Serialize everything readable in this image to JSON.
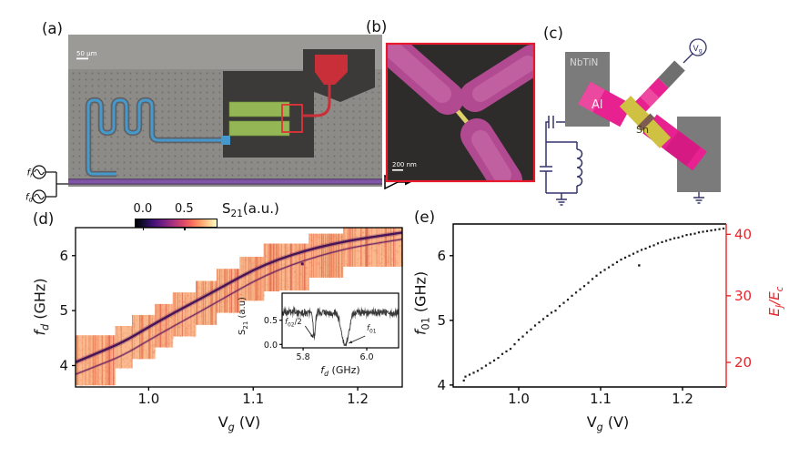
{
  "figure": {
    "panel_labels": {
      "a": "(a)",
      "b": "(b)",
      "c": "(c)",
      "d": "(d)",
      "e": "(e)"
    }
  },
  "panel_a": {
    "scale_bar": "50 μm",
    "source_top": {
      "prefix": "f",
      "sub": "r"
    },
    "source_bottom": {
      "prefix": "f",
      "sub": "d"
    }
  },
  "panel_b": {
    "scale_bar": "200 nm"
  },
  "panel_c": {
    "labels": {
      "nbtin": "NbTiN",
      "al": "Al",
      "sn": "Sn"
    },
    "gate": {
      "prefix": "V",
      "sub": "g"
    }
  },
  "chart_data": [
    {
      "id": "panel_d",
      "type": "heatmap",
      "xlabel_parts": {
        "prefix": "V",
        "sub": "g",
        "suffix": " (V)"
      },
      "ylabel_parts": {
        "prefix": "f",
        "sub": "d",
        "suffix": " (GHz)"
      },
      "xlim": [
        0.93,
        1.2426
      ],
      "ylim": [
        3.61,
        6.51
      ],
      "xticks": [
        1.0,
        1.1,
        1.2
      ],
      "xtick_labels": [
        "1.0",
        "1.1",
        "1.2"
      ],
      "yticks": [
        4,
        5,
        6
      ],
      "ytick_labels": [
        "4",
        "5",
        "6"
      ],
      "grid": false,
      "colorbar": {
        "label_parts": {
          "prefix": "S",
          "sub": "21",
          "suffix": "(a.u.)"
        },
        "tick_labels": [
          "0.0",
          "0.5"
        ],
        "tick_pos": [
          0.1,
          0.61
        ],
        "colors": [
          "#000004",
          "#140e36",
          "#3b0f70",
          "#641a80",
          "#8c2981",
          "#b73779",
          "#de4968",
          "#f7705c",
          "#fe9f6d",
          "#fecf92",
          "#fcfdbf"
        ]
      },
      "palette": {
        "base": "#f6a47b",
        "light": "#fdc89c",
        "dark": "#e4744e",
        "deep": "#d14f46"
      },
      "sweep_windows": [
        [
          0.93,
          0.968,
          3.64,
          4.55
        ],
        [
          0.968,
          0.984,
          3.95,
          4.72
        ],
        [
          0.984,
          1.006,
          4.12,
          4.92
        ],
        [
          1.006,
          1.023,
          4.33,
          5.12
        ],
        [
          1.023,
          1.045,
          4.53,
          5.33
        ],
        [
          1.045,
          1.065,
          4.74,
          5.54
        ],
        [
          1.065,
          1.087,
          4.96,
          5.76
        ],
        [
          1.087,
          1.11,
          5.18,
          5.98
        ],
        [
          1.11,
          1.153,
          5.35,
          6.22
        ],
        [
          1.153,
          1.186,
          5.6,
          6.4
        ],
        [
          1.186,
          1.2426,
          5.8,
          6.51
        ]
      ],
      "series": [
        {
          "name": "f01",
          "color": "#471457",
          "width": 2.4,
          "points": [
            [
              0.93,
              4.06
            ],
            [
              0.95,
              4.22
            ],
            [
              0.975,
              4.42
            ],
            [
              1.0,
              4.7
            ],
            [
              1.025,
              4.97
            ],
            [
              1.05,
              5.22
            ],
            [
              1.075,
              5.48
            ],
            [
              1.1,
              5.74
            ],
            [
              1.125,
              5.94
            ],
            [
              1.15,
              6.09
            ],
            [
              1.175,
              6.21
            ],
            [
              1.2,
              6.3
            ],
            [
              1.2426,
              6.42
            ]
          ]
        },
        {
          "name": "f02/2",
          "color": "#6e2a63",
          "width": 1.3,
          "points": [
            [
              0.93,
              3.84
            ],
            [
              0.95,
              3.99
            ],
            [
              0.975,
              4.18
            ],
            [
              1.0,
              4.46
            ],
            [
              1.025,
              4.73
            ],
            [
              1.05,
              4.99
            ],
            [
              1.075,
              5.26
            ],
            [
              1.1,
              5.53
            ],
            [
              1.125,
              5.75
            ],
            [
              1.15,
              5.92
            ],
            [
              1.175,
              6.06
            ],
            [
              1.2,
              6.17
            ],
            [
              1.2426,
              6.3
            ]
          ]
        }
      ],
      "outlier": [
        1.147,
        5.85
      ]
    },
    {
      "id": "panel_e",
      "type": "scatter",
      "xlabel_parts": {
        "prefix": "V",
        "sub": "g",
        "suffix": " (V)"
      },
      "ylabel_parts": {
        "prefix": "f",
        "sub": "01",
        "suffix": " (GHz)"
      },
      "right_ylabel_parts": {
        "e1": "E",
        "s1": "J",
        "slash": "/",
        "e2": "E",
        "s2": "c"
      },
      "right_axis_color": "#e8252a",
      "marker_color": "#1c1c1c",
      "xlim": [
        0.92,
        1.2533
      ],
      "ylim": [
        3.97,
        6.49
      ],
      "xticks": [
        1.0,
        1.1,
        1.2
      ],
      "xtick_labels": [
        "1.0",
        "1.1",
        "1.2"
      ],
      "yticks": [
        4,
        5,
        6
      ],
      "ytick_labels": [
        "4",
        "5",
        "6"
      ],
      "right_ticks": [
        {
          "label": "20",
          "f01_equiv": 4.35
        },
        {
          "label": "30",
          "f01_equiv": 5.38
        },
        {
          "label": "40",
          "f01_equiv": 6.33
        }
      ],
      "grid": false,
      "points": [
        [
          0.933,
          4.07
        ],
        [
          0.935,
          4.13
        ],
        [
          0.94,
          4.16
        ],
        [
          0.945,
          4.19
        ],
        [
          0.95,
          4.22
        ],
        [
          0.955,
          4.26
        ],
        [
          0.96,
          4.3
        ],
        [
          0.965,
          4.34
        ],
        [
          0.97,
          4.38
        ],
        [
          0.975,
          4.42
        ],
        [
          0.98,
          4.48
        ],
        [
          0.985,
          4.52
        ],
        [
          0.99,
          4.56
        ],
        [
          0.995,
          4.63
        ],
        [
          1.0,
          4.7
        ],
        [
          1.005,
          4.75
        ],
        [
          1.01,
          4.81
        ],
        [
          1.015,
          4.86
        ],
        [
          1.02,
          4.92
        ],
        [
          1.025,
          4.97
        ],
        [
          1.03,
          5.02
        ],
        [
          1.035,
          5.07
        ],
        [
          1.04,
          5.12
        ],
        [
          1.045,
          5.15
        ],
        [
          1.05,
          5.22
        ],
        [
          1.055,
          5.27
        ],
        [
          1.06,
          5.32
        ],
        [
          1.065,
          5.38
        ],
        [
          1.07,
          5.43
        ],
        [
          1.075,
          5.48
        ],
        [
          1.08,
          5.53
        ],
        [
          1.085,
          5.58
        ],
        [
          1.09,
          5.64
        ],
        [
          1.095,
          5.69
        ],
        [
          1.1,
          5.74
        ],
        [
          1.105,
          5.78
        ],
        [
          1.11,
          5.82
        ],
        [
          1.115,
          5.86
        ],
        [
          1.12,
          5.9
        ],
        [
          1.125,
          5.94
        ],
        [
          1.13,
          5.97
        ],
        [
          1.135,
          6.0
        ],
        [
          1.14,
          6.03
        ],
        [
          1.145,
          6.06
        ],
        [
          1.15,
          6.09
        ],
        [
          1.155,
          6.11
        ],
        [
          1.16,
          6.14
        ],
        [
          1.165,
          6.16
        ],
        [
          1.17,
          6.19
        ],
        [
          1.175,
          6.21
        ],
        [
          1.18,
          6.23
        ],
        [
          1.185,
          6.25
        ],
        [
          1.19,
          6.27
        ],
        [
          1.195,
          6.28
        ],
        [
          1.2,
          6.3
        ],
        [
          1.205,
          6.32
        ],
        [
          1.21,
          6.33
        ],
        [
          1.215,
          6.34
        ],
        [
          1.22,
          6.36
        ],
        [
          1.225,
          6.37
        ],
        [
          1.23,
          6.38
        ],
        [
          1.235,
          6.39
        ],
        [
          1.24,
          6.4
        ],
        [
          1.245,
          6.41
        ],
        [
          1.25,
          6.42
        ]
      ],
      "outlier": [
        1.147,
        5.85
      ]
    },
    {
      "id": "panel_d_inset",
      "type": "line",
      "xlabel_parts": {
        "prefix": "f",
        "sub": "d",
        "suffix": " (GHz)"
      },
      "ylabel_parts": {
        "prefix": "S",
        "sub": "21",
        "suffix": " (a.u)"
      },
      "xlim": [
        5.734,
        6.1
      ],
      "ylim": [
        -0.07,
        1.06
      ],
      "xticks": [
        5.8,
        6.0
      ],
      "xtick_labels": [
        "5.8",
        "6.0"
      ],
      "yticks": [
        0.0,
        0.5
      ],
      "ytick_labels": [
        "0.0",
        "0.5"
      ],
      "baseline": 0.66,
      "noise_amp": 0.09,
      "line_color": "#3a3a3a",
      "dips": [
        {
          "center": 5.835,
          "sigma": 0.0035,
          "depth": 0.52,
          "label_parts": {
            "prefix": "f",
            "sub": "02",
            "suffix": "/2"
          }
        },
        {
          "center": 5.932,
          "sigma": 0.011,
          "depth": 0.7,
          "label_parts": {
            "prefix": "f",
            "sub": "01",
            "suffix": ""
          }
        }
      ]
    }
  ]
}
